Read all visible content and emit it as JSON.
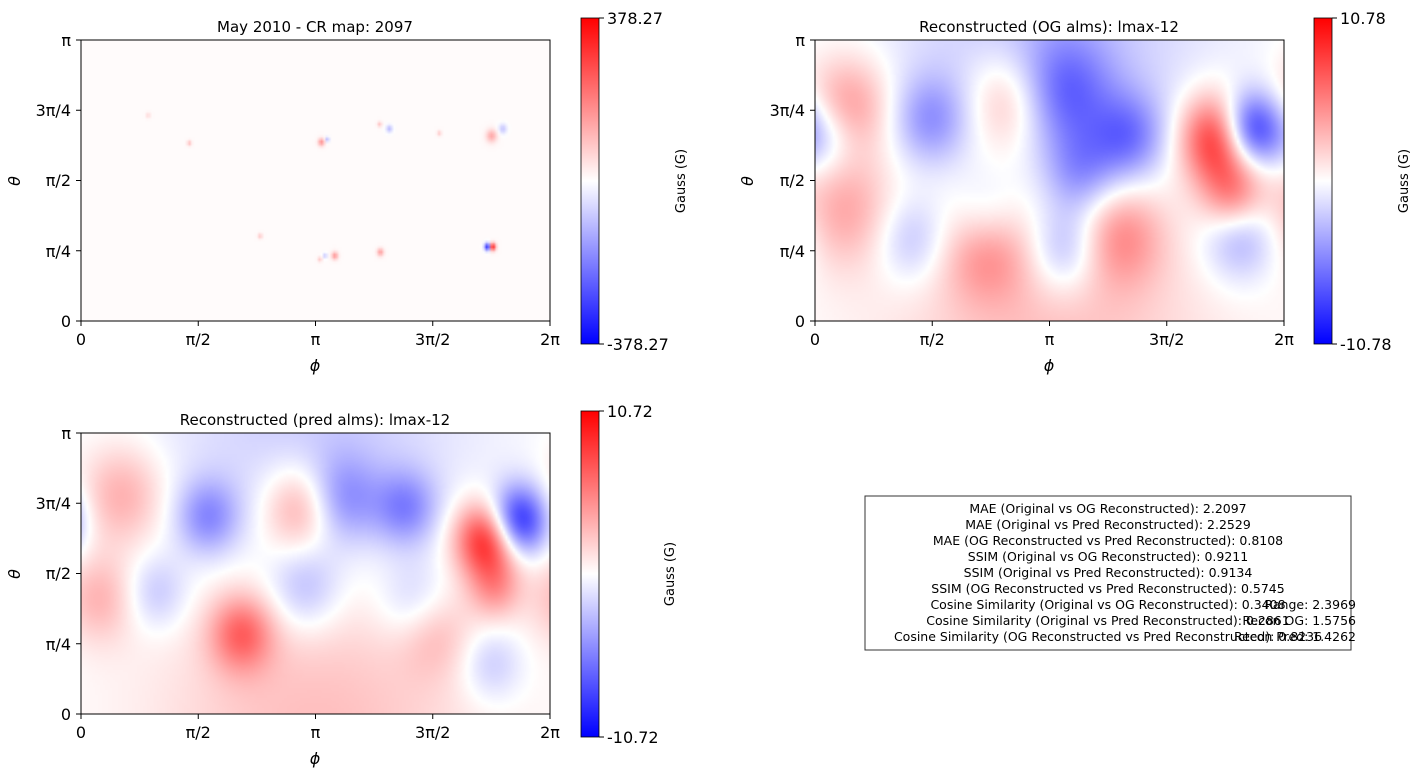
{
  "chart_data": [
    {
      "type": "heatmap",
      "title": "May 2010 - CR map: 2097",
      "xlabel": "ϕ",
      "ylabel": "θ",
      "x_ticks": [
        "0",
        "π/2",
        "π",
        "3π/2",
        "2π"
      ],
      "y_ticks": [
        "0",
        "π/4",
        "π/2",
        "3π/4",
        "π"
      ],
      "xlim": [
        0,
        6.2832
      ],
      "ylim": [
        0,
        3.1416
      ],
      "colormap": "bwr",
      "colorbar": {
        "label": "Gauss (G)",
        "max_label": "378.27",
        "min_label": "-378.27",
        "vmin": -378.27,
        "vmax": 378.27
      },
      "features": [
        {
          "x": 5.51,
          "y": 0.83,
          "value": 378,
          "r": 0.03
        },
        {
          "x": 5.45,
          "y": 0.83,
          "value": -378,
          "r": 0.03
        },
        {
          "x": 3.22,
          "y": 2.0,
          "value": 160,
          "r": 0.03
        },
        {
          "x": 3.3,
          "y": 2.03,
          "value": -120,
          "r": 0.02
        },
        {
          "x": 3.4,
          "y": 0.73,
          "value": 150,
          "r": 0.03
        },
        {
          "x": 3.27,
          "y": 0.73,
          "value": -100,
          "r": 0.02
        },
        {
          "x": 4.01,
          "y": 0.77,
          "value": 140,
          "r": 0.03
        },
        {
          "x": 4.13,
          "y": 2.15,
          "value": -110,
          "r": 0.03
        },
        {
          "x": 4.0,
          "y": 2.2,
          "value": 90,
          "r": 0.02
        },
        {
          "x": 5.5,
          "y": 2.07,
          "value": 120,
          "r": 0.05
        },
        {
          "x": 5.65,
          "y": 2.15,
          "value": -90,
          "r": 0.04
        },
        {
          "x": 1.45,
          "y": 1.99,
          "value": 100,
          "r": 0.02
        },
        {
          "x": 2.4,
          "y": 0.95,
          "value": 90,
          "r": 0.02
        },
        {
          "x": 3.2,
          "y": 0.69,
          "value": 80,
          "r": 0.02
        },
        {
          "x": 4.8,
          "y": 2.1,
          "value": 80,
          "r": 0.02
        },
        {
          "x": 0.9,
          "y": 2.3,
          "value": 60,
          "r": 0.02
        }
      ]
    },
    {
      "type": "heatmap",
      "title": "Reconstructed (OG alms): lmax-12",
      "xlabel": "ϕ",
      "ylabel": "θ",
      "x_ticks": [
        "0",
        "π/2",
        "π",
        "3π/2",
        "2π"
      ],
      "y_ticks": [
        "0",
        "π/4",
        "π/2",
        "3π/4",
        "π"
      ],
      "xlim": [
        0,
        6.2832
      ],
      "ylim": [
        0,
        3.1416
      ],
      "colormap": "bwr",
      "colorbar": {
        "label": "Gauss (G)",
        "max_label": "10.78",
        "min_label": "-10.78",
        "vmin": -10.78,
        "vmax": 10.78
      },
      "features": [
        {
          "x": 5.42,
          "y": 2.04,
          "value": 10.2,
          "r": 0.35
        },
        {
          "x": 5.82,
          "y": 2.14,
          "value": -10.5,
          "r": 0.3
        },
        {
          "x": 0.45,
          "y": 2.4,
          "value": 4.5,
          "r": 0.4
        },
        {
          "x": 1.55,
          "y": 2.25,
          "value": -4.0,
          "r": 0.35
        },
        {
          "x": 2.6,
          "y": 2.45,
          "value": 4.0,
          "r": 0.4
        },
        {
          "x": 3.35,
          "y": 2.55,
          "value": -5.0,
          "r": 0.45
        },
        {
          "x": 4.2,
          "y": 2.05,
          "value": -5.0,
          "r": 0.35
        },
        {
          "x": 3.55,
          "y": 1.65,
          "value": -4.0,
          "r": 0.35
        },
        {
          "x": 2.3,
          "y": 1.1,
          "value": -3.5,
          "r": 0.35
        },
        {
          "x": 2.3,
          "y": 0.85,
          "value": 5.0,
          "r": 0.4
        },
        {
          "x": 3.35,
          "y": 0.8,
          "value": -4.0,
          "r": 0.35
        },
        {
          "x": 4.1,
          "y": 0.95,
          "value": 4.0,
          "r": 0.4
        },
        {
          "x": 5.7,
          "y": 0.95,
          "value": -4.0,
          "r": 0.35
        },
        {
          "x": 5.6,
          "y": 1.4,
          "value": 5.0,
          "r": 0.3
        },
        {
          "x": 0.4,
          "y": 1.25,
          "value": 3.5,
          "r": 0.45
        },
        {
          "x": 1.3,
          "y": 0.9,
          "value": -3.0,
          "r": 0.35
        },
        {
          "x": 0.15,
          "y": 2.05,
          "value": -3.0,
          "r": 0.3
        },
        {
          "x": 3.15,
          "y": 0.1,
          "value": 3.0,
          "r": 1.5
        },
        {
          "x": 3.15,
          "y": 3.05,
          "value": -3.0,
          "r": 1.5
        }
      ]
    },
    {
      "type": "heatmap",
      "title": "Reconstructed (pred alms): lmax-12",
      "xlabel": "ϕ",
      "ylabel": "θ",
      "x_ticks": [
        "0",
        "π/2",
        "π",
        "3π/2",
        "2π"
      ],
      "y_ticks": [
        "0",
        "π/4",
        "π/2",
        "3π/4",
        "π"
      ],
      "xlim": [
        0,
        6.2832
      ],
      "ylim": [
        0,
        3.1416
      ],
      "colormap": "bwr",
      "colorbar": {
        "label": "Gauss (G)",
        "max_label": "10.72",
        "min_label": "-10.72",
        "vmin": -10.72,
        "vmax": 10.72
      },
      "features": [
        {
          "x": 5.45,
          "y": 1.95,
          "value": 10.0,
          "r": 0.3
        },
        {
          "x": 5.85,
          "y": 2.15,
          "value": -10.2,
          "r": 0.28
        },
        {
          "x": 0.55,
          "y": 2.45,
          "value": 3.5,
          "r": 0.4
        },
        {
          "x": 1.7,
          "y": 2.2,
          "value": -4.5,
          "r": 0.3
        },
        {
          "x": 2.95,
          "y": 2.3,
          "value": 4.5,
          "r": 0.35
        },
        {
          "x": 3.5,
          "y": 2.4,
          "value": -4.0,
          "r": 0.35
        },
        {
          "x": 4.35,
          "y": 2.3,
          "value": -4.5,
          "r": 0.3
        },
        {
          "x": 2.15,
          "y": 0.9,
          "value": 5.5,
          "r": 0.3
        },
        {
          "x": 3.0,
          "y": 1.4,
          "value": -3.0,
          "r": 0.35
        },
        {
          "x": 1.0,
          "y": 1.35,
          "value": -2.5,
          "r": 0.3
        },
        {
          "x": 4.5,
          "y": 1.2,
          "value": -3.0,
          "r": 0.35
        },
        {
          "x": 5.55,
          "y": 1.4,
          "value": 3.5,
          "r": 0.25
        },
        {
          "x": 4.7,
          "y": 0.95,
          "value": 3.0,
          "r": 0.35
        },
        {
          "x": 0.25,
          "y": 1.3,
          "value": 3.0,
          "r": 0.35
        },
        {
          "x": 5.5,
          "y": 0.55,
          "value": -2.5,
          "r": 0.3
        },
        {
          "x": 3.15,
          "y": 0.1,
          "value": 3.0,
          "r": 1.5
        },
        {
          "x": 3.15,
          "y": 3.05,
          "value": -2.5,
          "r": 1.5
        }
      ]
    }
  ],
  "metrics": {
    "lines": [
      "MAE (Original vs OG Reconstructed): 2.2097",
      "MAE (Original vs Pred Reconstructed): 2.2529",
      "MAE (OG Reconstructed vs Pred Reconstructed): 0.8108",
      "SSIM (Original vs OG Reconstructed): 0.9211",
      "SSIM (Original vs Pred Reconstructed): 0.9134",
      "SSIM (OG Reconstructed vs Pred Reconstructed): 0.5745",
      "Cosine Similarity (Original vs OG Reconstructed): 0.3408",
      "Cosine Similarity (Original vs Pred Reconstructed): 0.2861",
      "Cosine Similarity (OG Reconstructed vs Pred Reconstructed): 0.8236"
    ],
    "overlay_lines": [
      "Range: 2.3969",
      "Recon OG: 1.5756",
      "Recon Pred: 1.4262"
    ]
  }
}
